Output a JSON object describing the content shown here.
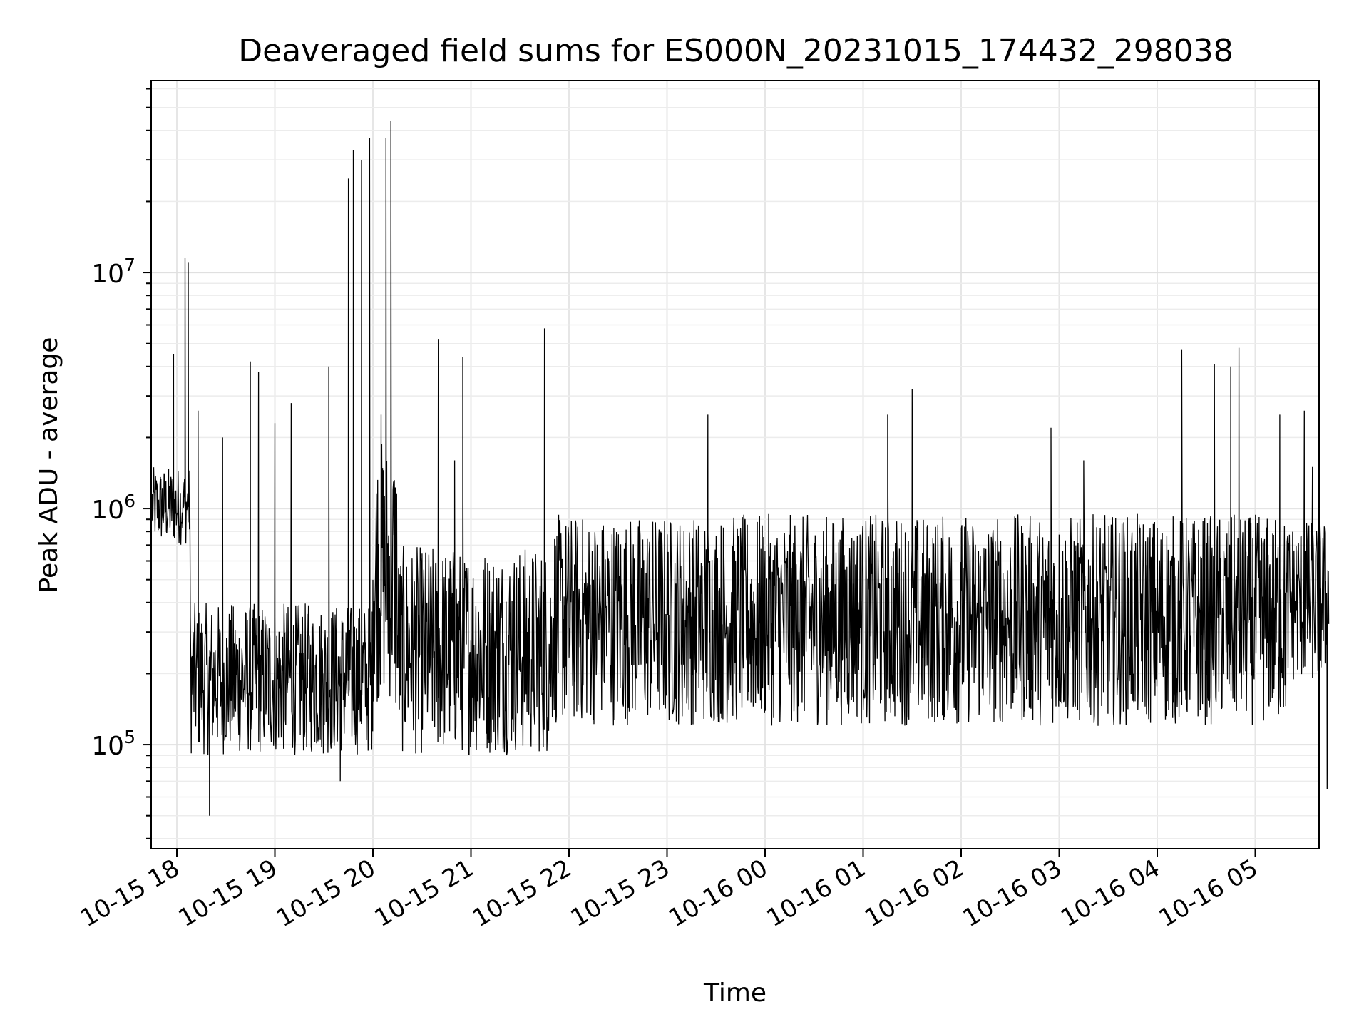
{
  "chart_data": {
    "type": "line",
    "title": "Deaveraged field sums for ES000N_20231015_174432_298038",
    "xlabel": "Time",
    "ylabel": "Peak ADU - average",
    "yscale": "log",
    "ylim": [
      35000,
      65000000
    ],
    "xlim": [
      "2023-10-15 17:44",
      "2023-10-16 05:45"
    ],
    "grid": true,
    "x_tick_labels": [
      "10-15 18",
      "10-15 19",
      "10-15 20",
      "10-15 21",
      "10-15 22",
      "10-15 23",
      "10-16 00",
      "10-16 01",
      "10-16 02",
      "10-16 03",
      "10-16 04",
      "10-16 05"
    ],
    "y_tick_labels": [
      {
        "base": "10",
        "exp": "5",
        "value": 100000
      },
      {
        "base": "10",
        "exp": "6",
        "value": 1000000
      },
      {
        "base": "10",
        "exp": "7",
        "value": 10000000
      }
    ],
    "line_color": "#000000",
    "series": [
      {
        "points": [
          [
            "2023-10-15 17:45",
            900000
          ],
          [
            "2023-10-15 17:50",
            1200000
          ],
          [
            "2023-10-15 17:55",
            1300000
          ],
          [
            "2023-10-15 17:58",
            4500000
          ],
          [
            "2023-10-15 18:02",
            1100000
          ],
          [
            "2023-10-15 18:05",
            11500000
          ],
          [
            "2023-10-15 18:07",
            11000000
          ],
          [
            "2023-10-15 18:10",
            300000
          ],
          [
            "2023-10-15 18:13",
            2600000
          ],
          [
            "2023-10-15 18:20",
            50000
          ],
          [
            "2023-10-15 18:28",
            2000000
          ],
          [
            "2023-10-15 18:35",
            200000
          ],
          [
            "2023-10-15 18:45",
            4200000
          ],
          [
            "2023-10-15 18:50",
            3800000
          ],
          [
            "2023-10-15 19:00",
            2300000
          ],
          [
            "2023-10-15 19:10",
            2800000
          ],
          [
            "2023-10-15 19:20",
            250000
          ],
          [
            "2023-10-15 19:30",
            200000
          ],
          [
            "2023-10-15 19:33",
            4000000
          ],
          [
            "2023-10-15 19:40",
            70000
          ],
          [
            "2023-10-15 19:45",
            25000000
          ],
          [
            "2023-10-15 19:48",
            33000000
          ],
          [
            "2023-10-15 19:53",
            30000000
          ],
          [
            "2023-10-15 19:58",
            37000000
          ],
          [
            "2023-10-15 20:00",
            500000
          ],
          [
            "2023-10-15 20:05",
            2500000
          ],
          [
            "2023-10-15 20:08",
            37000000
          ],
          [
            "2023-10-15 20:11",
            44000000
          ],
          [
            "2023-10-15 20:14",
            150000
          ],
          [
            "2023-10-15 20:20",
            200000
          ],
          [
            "2023-10-15 20:30",
            500000
          ],
          [
            "2023-10-15 20:40",
            5200000
          ],
          [
            "2023-10-15 20:50",
            1600000
          ],
          [
            "2023-10-15 20:55",
            4400000
          ],
          [
            "2023-10-15 21:00",
            250000
          ],
          [
            "2023-10-15 21:15",
            300000
          ],
          [
            "2023-10-15 21:30",
            350000
          ],
          [
            "2023-10-15 21:45",
            5800000
          ],
          [
            "2023-10-15 22:00",
            450000
          ],
          [
            "2023-10-15 22:15",
            500000
          ],
          [
            "2023-10-15 22:30",
            550000
          ],
          [
            "2023-10-15 22:45",
            500000
          ],
          [
            "2023-10-15 23:00",
            500000
          ],
          [
            "2023-10-15 23:25",
            2500000
          ],
          [
            "2023-10-15 23:40",
            500000
          ],
          [
            "2023-10-16 00:00",
            450000
          ],
          [
            "2023-10-16 00:20",
            500000
          ],
          [
            "2023-10-16 00:40",
            450000
          ],
          [
            "2023-10-16 01:00",
            500000
          ],
          [
            "2023-10-16 01:15",
            2500000
          ],
          [
            "2023-10-16 01:30",
            3200000
          ],
          [
            "2023-10-16 01:45",
            400000
          ],
          [
            "2023-10-16 02:00",
            450000
          ],
          [
            "2023-10-16 02:20",
            400000
          ],
          [
            "2023-10-16 02:40",
            400000
          ],
          [
            "2023-10-16 02:55",
            2200000
          ],
          [
            "2023-10-16 03:15",
            1600000
          ],
          [
            "2023-10-16 03:30",
            400000
          ],
          [
            "2023-10-16 03:50",
            400000
          ],
          [
            "2023-10-16 04:00",
            350000
          ],
          [
            "2023-10-16 04:15",
            4700000
          ],
          [
            "2023-10-16 04:35",
            4100000
          ],
          [
            "2023-10-16 04:45",
            4000000
          ],
          [
            "2023-10-16 04:50",
            4800000
          ],
          [
            "2023-10-16 05:15",
            2500000
          ],
          [
            "2023-10-16 05:30",
            2600000
          ],
          [
            "2023-10-16 05:35",
            1500000
          ],
          [
            "2023-10-16 05:40",
            380000
          ],
          [
            "2023-10-16 05:44",
            65000
          ]
        ]
      }
    ]
  }
}
